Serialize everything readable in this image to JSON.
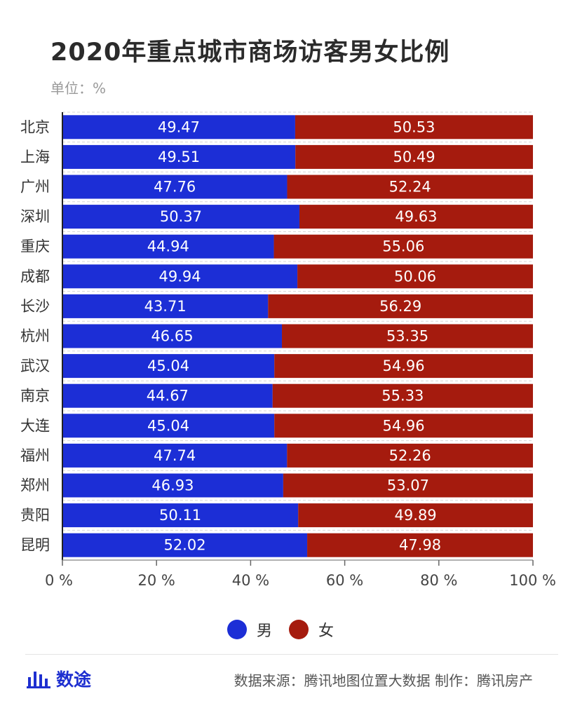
{
  "title": "2020年重点城市商场访客男女比例",
  "unit": "单位：%",
  "colors": {
    "male": "#1c2ed6",
    "female": "#a51b0e"
  },
  "footer": {
    "logo_text": "数途",
    "source": "数据来源：腾讯地图位置大数据  制作：腾讯房产"
  },
  "chart_data": {
    "type": "bar",
    "orientation": "horizontal",
    "stacked": true,
    "title": "2020年重点城市商场访客男女比例",
    "xlim": [
      0,
      100
    ],
    "x_ticks": [
      0,
      20,
      40,
      60,
      80,
      100
    ],
    "x_tick_suffix": " %",
    "grid": true,
    "legend": "bottom",
    "categories": [
      "北京",
      "上海",
      "广州",
      "深圳",
      "重庆",
      "成都",
      "长沙",
      "杭州",
      "武汉",
      "南京",
      "大连",
      "福州",
      "郑州",
      "贵阳",
      "昆明"
    ],
    "series": [
      {
        "name": "男",
        "values": [
          49.47,
          49.51,
          47.76,
          50.37,
          44.94,
          49.94,
          43.71,
          46.65,
          45.04,
          44.67,
          45.04,
          47.74,
          46.93,
          50.11,
          52.02
        ]
      },
      {
        "name": "女",
        "values": [
          50.53,
          50.49,
          52.24,
          49.63,
          55.06,
          50.06,
          56.29,
          53.35,
          54.96,
          55.33,
          54.96,
          52.26,
          53.07,
          49.89,
          47.98
        ]
      }
    ]
  }
}
